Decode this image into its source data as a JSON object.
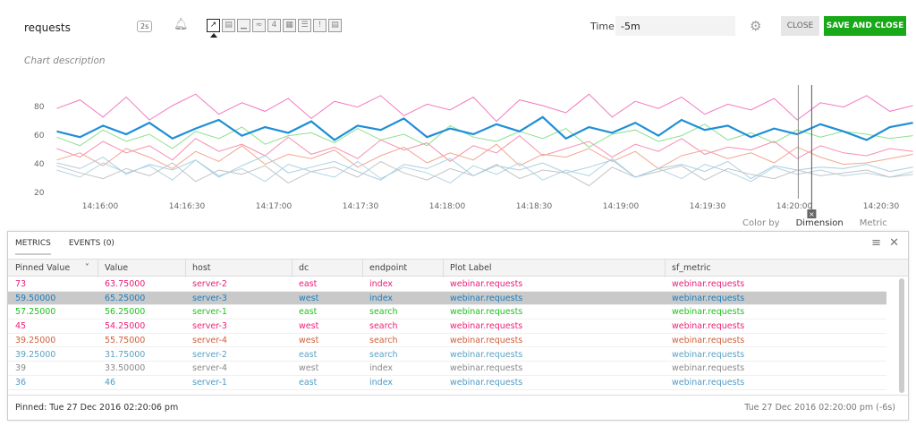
{
  "header": {
    "title": "requests",
    "refresh": "2s",
    "bell_icon": "bell-icon",
    "chart_types": [
      {
        "icon": "line-chart-icon",
        "active": true
      },
      {
        "icon": "area-chart-icon"
      },
      {
        "icon": "column-chart-icon"
      },
      {
        "icon": "histogram-icon"
      },
      {
        "icon": "single-value-icon",
        "label": "4"
      },
      {
        "icon": "heatmap-icon"
      },
      {
        "icon": "list-icon"
      },
      {
        "icon": "event-feed-icon",
        "label": "!"
      },
      {
        "icon": "text-note-icon"
      }
    ],
    "description_placeholder": "Chart description",
    "time_label": "Time",
    "time_value": "-5m",
    "close": "CLOSE",
    "save_close": "SAVE AND CLOSE"
  },
  "chart_data": {
    "type": "line",
    "ylim": [
      15,
      90
    ],
    "y_ticks": [
      "20",
      "40",
      "60",
      "80"
    ],
    "x_ticks": [
      "14:16:00",
      "14:16:30",
      "14:17:00",
      "14:17:30",
      "14:18:00",
      "14:18:30",
      "14:19:00",
      "14:19:30",
      "14:20:00",
      "14:20:30"
    ],
    "x_start": "14:15:45",
    "interval_seconds": 8,
    "crosshair": "14:20:06",
    "series": [
      {
        "color": "#f27ac0",
        "values": [
          78,
          84,
          72,
          86,
          70,
          80,
          88,
          74,
          82,
          76,
          85,
          71,
          83,
          79,
          87,
          73,
          81,
          77,
          86,
          69,
          84,
          80,
          75,
          88,
          72,
          83,
          78,
          86,
          74,
          81,
          77,
          85,
          70,
          82,
          79,
          87,
          76,
          80
        ]
      },
      {
        "color": "#1f8fd6",
        "thick": true,
        "values": [
          62,
          58,
          66,
          60,
          68,
          57,
          64,
          70,
          59,
          65,
          61,
          69,
          56,
          66,
          63,
          71,
          58,
          64,
          60,
          67,
          62,
          72,
          57,
          65,
          61,
          68,
          59,
          70,
          63,
          66,
          58,
          64,
          60,
          67,
          62,
          56,
          65,
          68
        ]
      },
      {
        "color": "#8be08f",
        "values": [
          58,
          52,
          63,
          55,
          60,
          50,
          62,
          57,
          65,
          53,
          59,
          61,
          54,
          64,
          56,
          60,
          52,
          66,
          58,
          55,
          62,
          57,
          64,
          51,
          60,
          63,
          55,
          59,
          67,
          56,
          61,
          54,
          63,
          58,
          62,
          60,
          57,
          59
        ]
      },
      {
        "color": "#f590b0",
        "values": [
          50,
          44,
          55,
          47,
          52,
          42,
          57,
          48,
          53,
          45,
          58,
          46,
          51,
          43,
          56,
          49,
          54,
          41,
          52,
          47,
          59,
          45,
          50,
          55,
          44,
          53,
          48,
          57,
          46,
          51,
          49,
          55,
          43,
          52,
          47,
          45,
          50,
          48
        ]
      },
      {
        "color": "#f0a890",
        "values": [
          42,
          47,
          38,
          50,
          44,
          36,
          48,
          41,
          52,
          39,
          46,
          43,
          49,
          37,
          45,
          51,
          40,
          47,
          42,
          53,
          38,
          46,
          44,
          50,
          41,
          48,
          36,
          45,
          49,
          43,
          47,
          40,
          51,
          44,
          39,
          40,
          43,
          46
        ]
      },
      {
        "color": "#b4d4e4",
        "values": [
          35,
          30,
          40,
          33,
          38,
          28,
          42,
          31,
          36,
          27,
          39,
          34,
          30,
          41,
          29,
          37,
          33,
          26,
          38,
          32,
          40,
          28,
          35,
          31,
          43,
          30,
          36,
          29,
          39,
          34,
          27,
          37,
          32,
          35,
          31,
          33,
          30,
          34
        ]
      },
      {
        "color": "#c4c4c4",
        "values": [
          38,
          33,
          29,
          36,
          31,
          40,
          27,
          35,
          32,
          38,
          26,
          34,
          37,
          30,
          41,
          33,
          28,
          36,
          31,
          39,
          29,
          35,
          33,
          24,
          37,
          30,
          34,
          38,
          28,
          36,
          32,
          29,
          35,
          31,
          33,
          35,
          30,
          32
        ]
      },
      {
        "color": "#a8cfe0",
        "values": [
          40,
          36,
          44,
          32,
          39,
          35,
          42,
          30,
          38,
          45,
          33,
          37,
          41,
          34,
          28,
          39,
          36,
          43,
          31,
          38,
          35,
          40,
          33,
          37,
          42,
          30,
          36,
          39,
          34,
          41,
          29,
          38,
          35,
          37,
          36,
          39,
          34,
          37
        ]
      }
    ]
  },
  "behind_tabs": [
    "Color by",
    "Dimension",
    "Metric"
  ],
  "panel": {
    "tabs": [
      "METRICS",
      "EVENTS (0)"
    ],
    "columns": [
      "Pinned Value",
      "Value",
      "host",
      "dc",
      "endpoint",
      "Plot Label",
      "sf_metric"
    ],
    "rows": [
      {
        "color": "#e8207a",
        "cells": [
          "73",
          "63.75000",
          "server-2",
          "east",
          "index",
          "webinar.requests",
          "webinar.requests"
        ]
      },
      {
        "color": "#1a7fc0",
        "selected": true,
        "cells": [
          "59.50000",
          "65.25000",
          "server-3",
          "west",
          "index",
          "webinar.requests",
          "webinar.requests"
        ]
      },
      {
        "color": "#1ec21e",
        "cells": [
          "57.25000",
          "56.25000",
          "server-1",
          "east",
          "search",
          "webinar.requests",
          "webinar.requests"
        ]
      },
      {
        "color": "#f0207a",
        "cells": [
          "45",
          "54.25000",
          "server-3",
          "west",
          "search",
          "webinar.requests",
          "webinar.requests"
        ]
      },
      {
        "color": "#d0603a",
        "cells": [
          "39.25000",
          "55.75000",
          "server-4",
          "west",
          "search",
          "webinar.requests",
          "webinar.requests"
        ]
      },
      {
        "color": "#5aa2c4",
        "cells": [
          "39.25000",
          "31.75000",
          "server-2",
          "east",
          "search",
          "webinar.requests",
          "webinar.requests"
        ]
      },
      {
        "color": "#8a8a8a",
        "cells": [
          "39",
          "33.50000",
          "server-4",
          "west",
          "index",
          "webinar.requests",
          "webinar.requests"
        ]
      },
      {
        "color": "#4e9cc6",
        "cells": [
          "36",
          "46",
          "server-1",
          "east",
          "index",
          "webinar.requests",
          "webinar.requests"
        ]
      }
    ],
    "pinned": "Pinned: Tue 27 Dec 2016 02:20:06 pm",
    "current": "Tue 27 Dec 2016 02:20:00 pm (-6s)"
  }
}
